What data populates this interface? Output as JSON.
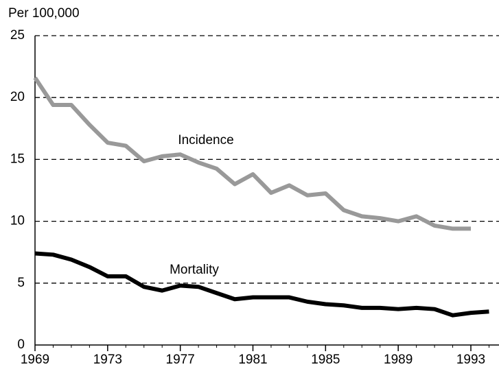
{
  "chart_data": {
    "type": "line",
    "y_label": "Per 100,000",
    "x": [
      1969,
      1970,
      1971,
      1972,
      1973,
      1974,
      1975,
      1976,
      1977,
      1978,
      1979,
      1980,
      1981,
      1982,
      1983,
      1984,
      1985,
      1986,
      1987,
      1988,
      1989,
      1990,
      1991,
      1992,
      1993,
      1994
    ],
    "series": [
      {
        "name": "Incidence",
        "color": "#999999",
        "values": [
          21.6,
          19.4,
          19.4,
          17.8,
          16.35,
          16.1,
          14.85,
          15.25,
          15.4,
          14.75,
          14.25,
          13.0,
          13.8,
          12.3,
          12.9,
          12.1,
          12.25,
          10.9,
          10.4,
          10.25,
          10.0,
          10.4,
          9.65,
          9.4,
          9.4,
          null
        ]
      },
      {
        "name": "Mortality",
        "color": "#000000",
        "values": [
          7.4,
          7.3,
          6.9,
          6.3,
          5.55,
          5.55,
          4.7,
          4.4,
          4.8,
          4.7,
          4.2,
          3.7,
          3.85,
          3.85,
          3.85,
          3.5,
          3.3,
          3.2,
          3.0,
          3.0,
          2.9,
          3.0,
          2.9,
          2.4,
          2.6,
          2.7
        ]
      }
    ],
    "xlim": [
      1969,
      1994.5
    ],
    "xticks": [
      1969,
      1973,
      1977,
      1981,
      1985,
      1989,
      1993
    ],
    "ylim": [
      0,
      25
    ],
    "yticks": [
      0,
      5,
      10,
      15,
      20,
      25
    ],
    "grid": true
  }
}
